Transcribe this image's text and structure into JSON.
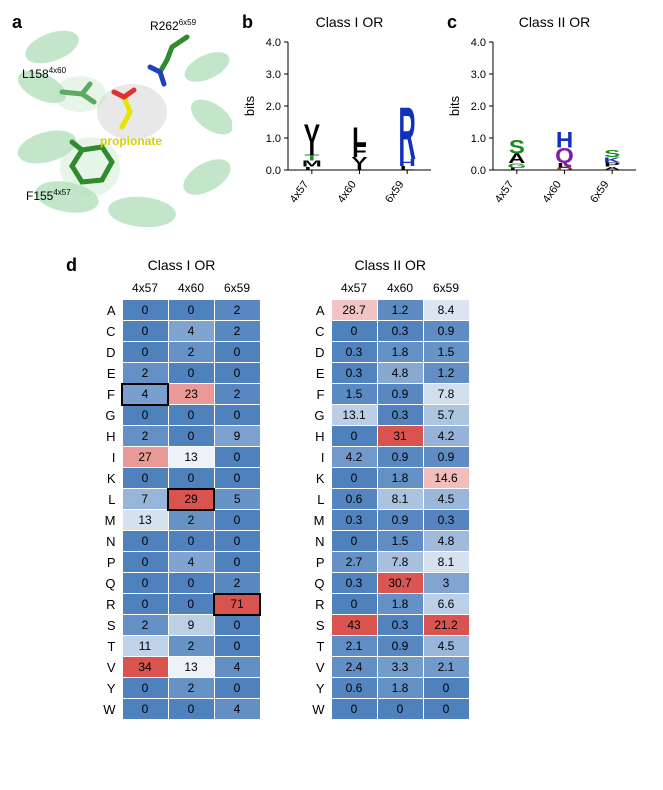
{
  "panels": {
    "a": {
      "label": "a"
    },
    "b": {
      "label": "b",
      "title": "Class I OR"
    },
    "c": {
      "label": "c",
      "title": "Class II OR"
    },
    "d": {
      "label": "d",
      "title1": "Class I OR",
      "title2": "Class II OR"
    }
  },
  "structure": {
    "residues": {
      "r262": {
        "name": "R262",
        "super": "6x59"
      },
      "l158": {
        "name": "L158",
        "super": "4x60"
      },
      "f155": {
        "name": "F155",
        "super": "4x57"
      }
    },
    "ligand": "propionate",
    "colors": {
      "helix": "#b9e2c1",
      "stick_c": "#2e8b2e",
      "stick_n": "#2040c0",
      "ligand_c": "#e6e600",
      "ligand_o": "#e03030",
      "surface": "#e5e5e5"
    }
  },
  "logo": {
    "axis_label": "bits",
    "y_max": 4.0,
    "y_ticks": [
      0.0,
      1.0,
      2.0,
      3.0,
      4.0
    ],
    "positions": [
      "4x57",
      "4x60",
      "6x59"
    ],
    "classI": [
      [
        {
          "l": "V",
          "h": 0.55,
          "c": "#000"
        },
        {
          "l": "I",
          "h": 0.4,
          "c": "#000"
        },
        {
          "l": "T",
          "h": 0.18,
          "c": "#1a8c1a"
        },
        {
          "l": "M",
          "h": 0.18,
          "c": "#000"
        },
        {
          "l": "L",
          "h": 0.11,
          "c": "#000"
        }
      ],
      [
        {
          "l": "L",
          "h": 0.55,
          "c": "#000"
        },
        {
          "l": "F",
          "h": 0.38,
          "c": "#000"
        },
        {
          "l": "V",
          "h": 0.2,
          "c": "#000"
        },
        {
          "l": "I",
          "h": 0.2,
          "c": "#000"
        }
      ],
      [
        {
          "l": "R",
          "h": 1.65,
          "c": "#1030c0"
        },
        {
          "l": "H",
          "h": 0.22,
          "c": "#1030c0"
        },
        {
          "l": "L",
          "h": 0.12,
          "c": "#000"
        }
      ]
    ],
    "classII": [
      [
        {
          "l": "S",
          "h": 0.43,
          "c": "#1a8c1a"
        },
        {
          "l": "A",
          "h": 0.3,
          "c": "#000"
        },
        {
          "l": "G",
          "h": 0.15,
          "c": "#1a8c1a"
        },
        {
          "l": "L",
          "h": 0.07,
          "c": "#000"
        }
      ],
      [
        {
          "l": "H",
          "h": 0.5,
          "c": "#1030c0"
        },
        {
          "l": "Q",
          "h": 0.48,
          "c": "#8020a0"
        },
        {
          "l": "L",
          "h": 0.15,
          "c": "#000"
        },
        {
          "l": "D",
          "h": 0.08,
          "c": "#c02020"
        }
      ],
      [
        {
          "l": "S",
          "h": 0.22,
          "c": "#1a8c1a"
        },
        {
          "l": "K",
          "h": 0.17,
          "c": "#1030c0"
        },
        {
          "l": "P",
          "h": 0.12,
          "c": "#000"
        },
        {
          "l": "A",
          "h": 0.11,
          "c": "#000"
        }
      ]
    ]
  },
  "heatmap": {
    "columns": [
      "4x57",
      "4x60",
      "6x59"
    ],
    "rows": [
      "A",
      "C",
      "D",
      "E",
      "F",
      "G",
      "H",
      "I",
      "K",
      "L",
      "M",
      "N",
      "P",
      "Q",
      "R",
      "S",
      "T",
      "V",
      "Y",
      "W"
    ],
    "boxed_classI": [
      [
        4,
        0
      ],
      [
        9,
        1
      ],
      [
        14,
        2
      ]
    ],
    "colors": {
      "low": "#4f81bd",
      "mid": "#ffffff",
      "high": "#d9534f"
    },
    "column_max_classI": [
      34,
      29,
      71
    ],
    "column_max_classII": [
      43,
      31,
      21.2
    ],
    "classI": [
      [
        0,
        0,
        2
      ],
      [
        0,
        4,
        2
      ],
      [
        0,
        2,
        0
      ],
      [
        2,
        0,
        0
      ],
      [
        4,
        23,
        2
      ],
      [
        0,
        0,
        0
      ],
      [
        2,
        0,
        9
      ],
      [
        27,
        13,
        0
      ],
      [
        0,
        0,
        0
      ],
      [
        7,
        29,
        5
      ],
      [
        13,
        2,
        0
      ],
      [
        0,
        0,
        0
      ],
      [
        0,
        4,
        0
      ],
      [
        0,
        0,
        2
      ],
      [
        0,
        0,
        71
      ],
      [
        2,
        9,
        0
      ],
      [
        11,
        2,
        0
      ],
      [
        34,
        13,
        4
      ],
      [
        0,
        2,
        0
      ],
      [
        0,
        0,
        4
      ]
    ],
    "classII": [
      [
        28.7,
        1.2,
        8.4
      ],
      [
        0,
        0.3,
        0.9
      ],
      [
        0.3,
        1.8,
        1.5
      ],
      [
        0.3,
        4.8,
        1.2
      ],
      [
        1.5,
        0.9,
        7.8
      ],
      [
        13.1,
        0.3,
        5.7
      ],
      [
        0,
        31,
        4.2
      ],
      [
        4.2,
        0.9,
        0.9
      ],
      [
        0,
        1.8,
        14.6
      ],
      [
        0.6,
        8.1,
        4.5
      ],
      [
        0.3,
        0.9,
        0.3
      ],
      [
        0,
        1.5,
        4.8
      ],
      [
        2.7,
        7.8,
        8.1
      ],
      [
        0.3,
        30.7,
        3
      ],
      [
        0,
        1.8,
        6.6
      ],
      [
        43,
        0.3,
        21.2
      ],
      [
        2.1,
        0.9,
        4.5
      ],
      [
        2.4,
        3.3,
        2.1
      ],
      [
        0.6,
        1.8,
        0
      ],
      [
        0,
        0,
        0
      ]
    ]
  }
}
